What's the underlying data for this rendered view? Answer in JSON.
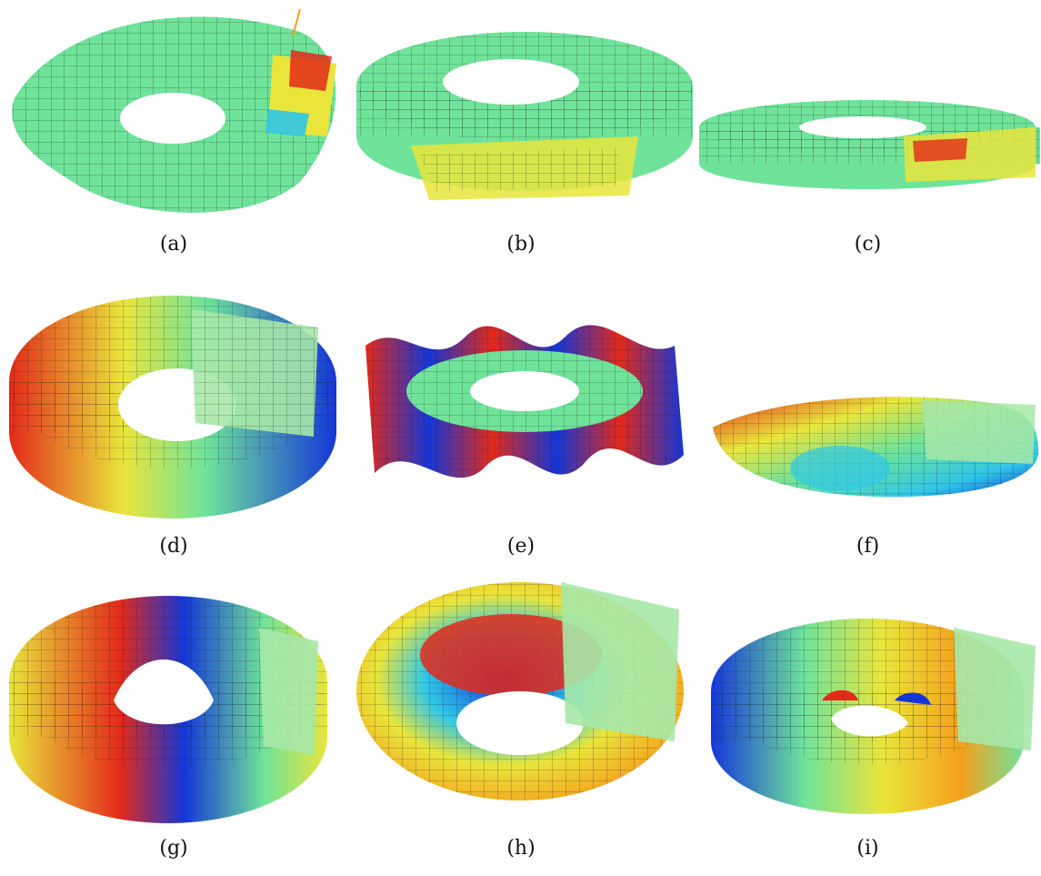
{
  "figure": {
    "panels": [
      {
        "id": "a",
        "caption": "(a)",
        "palette": "mostly-green"
      },
      {
        "id": "b",
        "caption": "(b)",
        "palette": "mostly-green"
      },
      {
        "id": "c",
        "caption": "(c)",
        "palette": "mostly-green"
      },
      {
        "id": "d",
        "caption": "(d)",
        "palette": "rainbow"
      },
      {
        "id": "e",
        "caption": "(e)",
        "palette": "rainbow-wavy"
      },
      {
        "id": "f",
        "caption": "(f)",
        "palette": "rainbow-folded"
      },
      {
        "id": "g",
        "caption": "(g)",
        "palette": "rainbow"
      },
      {
        "id": "h",
        "caption": "(h)",
        "palette": "rainbow"
      },
      {
        "id": "i",
        "caption": "(i)",
        "palette": "rainbow"
      }
    ],
    "colors": {
      "green": "#6fe39a",
      "red": "#e32a1a",
      "orange": "#f5a01c",
      "yellow": "#e9e53b",
      "cyan": "#2fc7e8",
      "blue": "#1436d8",
      "mesh": "#1a1a1a",
      "arrow": "#46c96a"
    }
  }
}
